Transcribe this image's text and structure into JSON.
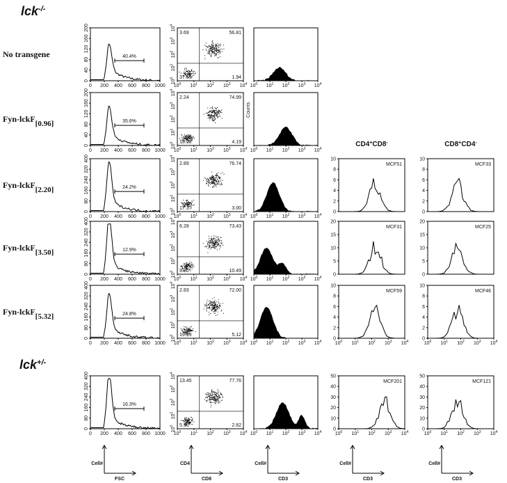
{
  "groups": [
    {
      "title": "lck",
      "sup": "-/-"
    },
    {
      "title": "lck",
      "sup": "+/-"
    }
  ],
  "column_headers": [
    {
      "a": "CD4",
      "a_sup": "+",
      "b": "CD8",
      "b_sup": "-"
    },
    {
      "a": "CD8",
      "a_sup": "+",
      "b": "CD4",
      "b_sup": "-"
    }
  ],
  "fsc_xticks": [
    "0",
    "200",
    "400",
    "600",
    "800",
    "1000"
  ],
  "log_base": "10",
  "log_exponents": [
    "0",
    "1",
    "2",
    "3",
    "4"
  ],
  "rows": [
    {
      "label": "No transgene",
      "gate": "40.4%",
      "fsc_yticks": [
        "0",
        "40",
        "80",
        "120",
        "160",
        "200"
      ],
      "quadrants": [
        "3.69",
        "56.81",
        "37.55",
        "1.94"
      ]
    },
    {
      "label": "Fyn-lckF",
      "label_sub": "[0.96]",
      "gate": "35.6%",
      "fsc_yticks": [
        "0",
        "40",
        "80",
        "120",
        "160",
        "200"
      ],
      "quadrants": [
        "2.24",
        "74.99",
        "18.58",
        "4.19"
      ],
      "hist_ylabel": "Counts"
    },
    {
      "label": "Fyn-lckF",
      "label_sub": "[2.20]",
      "gate": "24.2%",
      "fsc_yticks": [
        "0",
        "80",
        "160",
        "240",
        "320",
        "400"
      ],
      "quadrants": [
        "2.89",
        "76.74",
        "17.37",
        "3.00"
      ],
      "right": {
        "yticks": [
          "0",
          "2",
          "4",
          "6",
          "8",
          "10"
        ],
        "left": "MCF51",
        "right": "MCF33"
      }
    },
    {
      "label": "Fyn-lckF",
      "label_sub": "[3.50]",
      "gate": "12.9%",
      "fsc_yticks": [
        "0",
        "80",
        "160",
        "240",
        "320",
        "400"
      ],
      "quadrants": [
        "6.28",
        "73.43",
        "9.80",
        "10.49"
      ],
      "right": {
        "yticks": [
          "0",
          "5",
          "10",
          "15",
          "20"
        ],
        "left": "MCF31",
        "right": "MCF25"
      }
    },
    {
      "label": "Fyn-lckF",
      "label_sub": "[5.32]",
      "gate": "24.8%",
      "fsc_yticks": [
        "0",
        "80",
        "160",
        "240",
        "320",
        "400"
      ],
      "quadrants": [
        "2.83",
        "72.00",
        "19.99",
        "5.12"
      ],
      "right": {
        "yticks": [
          "0",
          "2",
          "4",
          "6",
          "8",
          "10"
        ],
        "left": "MCF59",
        "right": "MCF46"
      }
    },
    {
      "gate": "16.3%",
      "fsc_yticks": [
        "0",
        "80",
        "160",
        "240",
        "320",
        "400"
      ],
      "quadrants": [
        "13.45",
        "77.76",
        "5.96",
        "2.82"
      ],
      "right": {
        "yticks": [
          "0",
          "10",
          "20",
          "30",
          "40",
          "50"
        ],
        "left": "MCF201",
        "right": "MCF121"
      }
    }
  ],
  "axis_labels": [
    {
      "y": "Cell#",
      "x": "FSC"
    },
    {
      "y": "CD4",
      "x": "CD8"
    },
    {
      "y": "Cell#",
      "x": "CD3"
    },
    {
      "y": "Cell#",
      "x": "CD3"
    },
    {
      "y": "Cell#",
      "x": "CD3"
    }
  ]
}
